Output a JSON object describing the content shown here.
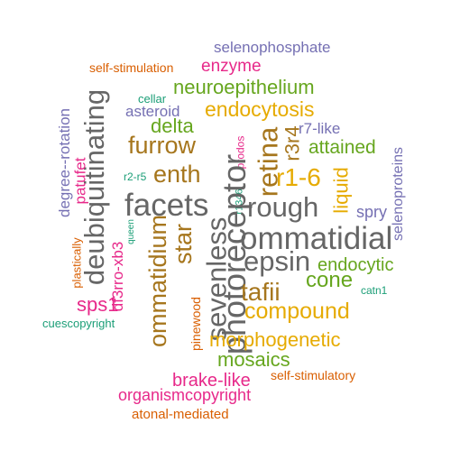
{
  "palette": {
    "teal": "#1b9e77",
    "orange": "#d95f02",
    "purple": "#7570b3",
    "magenta": "#e7298a",
    "green": "#66a61e",
    "gold": "#e6ab02",
    "brown": "#a6761d",
    "gray": "#666666"
  },
  "words": [
    {
      "text": "selenophosphate",
      "color": "purple",
      "rotated": false
    },
    {
      "text": "self-stimulation",
      "color": "orange",
      "rotated": false
    },
    {
      "text": "enzyme",
      "color": "magenta",
      "rotated": false
    },
    {
      "text": "neuroepithelium",
      "color": "green",
      "rotated": false
    },
    {
      "text": "cellar",
      "color": "teal",
      "rotated": false
    },
    {
      "text": "asteroid",
      "color": "purple",
      "rotated": false
    },
    {
      "text": "endocytosis",
      "color": "gold",
      "rotated": false
    },
    {
      "text": "degree--rotation",
      "color": "purple",
      "rotated": true
    },
    {
      "text": "deubiquitinating",
      "color": "gray",
      "rotated": true
    },
    {
      "text": "delta",
      "color": "green",
      "rotated": false
    },
    {
      "text": "r7-like",
      "color": "purple",
      "rotated": false
    },
    {
      "text": "patufet",
      "color": "magenta",
      "rotated": true
    },
    {
      "text": "furrow",
      "color": "brown",
      "rotated": false
    },
    {
      "text": "r3r4",
      "color": "brown",
      "rotated": true
    },
    {
      "text": "prodos",
      "color": "magenta",
      "rotated": true
    },
    {
      "text": "attained",
      "color": "green",
      "rotated": false
    },
    {
      "text": "retina",
      "color": "brown",
      "rotated": true
    },
    {
      "text": "selenoproteins",
      "color": "purple",
      "rotated": true
    },
    {
      "text": "r2-r5",
      "color": "teal",
      "rotated": false
    },
    {
      "text": "enth",
      "color": "brown",
      "rotated": false
    },
    {
      "text": "r1-6",
      "color": "gold",
      "rotated": false
    },
    {
      "text": "liquid",
      "color": "gold",
      "rotated": true
    },
    {
      "text": "facets",
      "color": "gray",
      "rotated": false
    },
    {
      "text": "r1346",
      "color": "teal",
      "rotated": true
    },
    {
      "text": "rough",
      "color": "gray",
      "rotated": false
    },
    {
      "text": "spry",
      "color": "purple",
      "rotated": false
    },
    {
      "text": "queen",
      "color": "teal",
      "rotated": true
    },
    {
      "text": "star",
      "color": "brown",
      "rotated": true
    },
    {
      "text": "sevenless",
      "color": "gray",
      "rotated": true
    },
    {
      "text": "photoreceptor",
      "color": "gray",
      "rotated": true
    },
    {
      "text": "ommatidial",
      "color": "gray",
      "rotated": false
    },
    {
      "text": "plastically",
      "color": "orange",
      "rotated": true
    },
    {
      "text": "df3rro-xb3",
      "color": "magenta",
      "rotated": true
    },
    {
      "text": "ommatidium",
      "color": "brown",
      "rotated": true
    },
    {
      "text": "epsin",
      "color": "gray",
      "rotated": false
    },
    {
      "text": "endocytic",
      "color": "green",
      "rotated": false
    },
    {
      "text": "cone",
      "color": "green",
      "rotated": false
    },
    {
      "text": "catn1",
      "color": "teal",
      "rotated": false
    },
    {
      "text": "tafii",
      "color": "brown",
      "rotated": false
    },
    {
      "text": "sps1",
      "color": "magenta",
      "rotated": false
    },
    {
      "text": "compound",
      "color": "gold",
      "rotated": false
    },
    {
      "text": "pinewood",
      "color": "orange",
      "rotated": true
    },
    {
      "text": "cuescopyright",
      "color": "teal",
      "rotated": false
    },
    {
      "text": "morphogenetic",
      "color": "gold",
      "rotated": false
    },
    {
      "text": "mosaics",
      "color": "green",
      "rotated": false
    },
    {
      "text": "self-stimulatory",
      "color": "orange",
      "rotated": false
    },
    {
      "text": "brake-like",
      "color": "magenta",
      "rotated": false
    },
    {
      "text": "organismcopyright",
      "color": "magenta",
      "rotated": false
    },
    {
      "text": "atonal-mediated",
      "color": "orange",
      "rotated": false
    }
  ]
}
